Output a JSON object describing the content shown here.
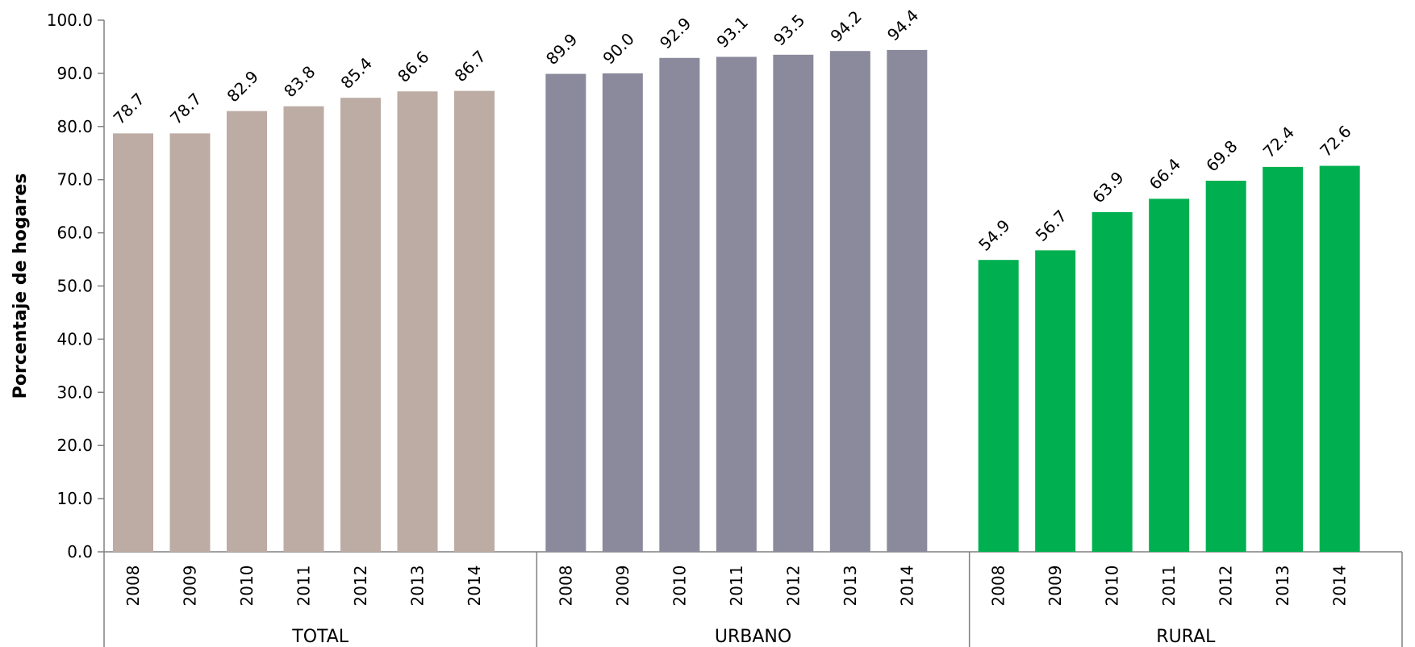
{
  "chart_data": {
    "type": "bar",
    "ylabel": "Porcentaje de hogares",
    "ylim": [
      0,
      100
    ],
    "yticks": [
      "0.0",
      "10.0",
      "20.0",
      "30.0",
      "40.0",
      "50.0",
      "60.0",
      "70.0",
      "80.0",
      "90.0",
      "100.0"
    ],
    "grid": false,
    "groups": [
      {
        "name": "TOTAL",
        "color": "#bcaca4",
        "categories": [
          "2008",
          "2009",
          "2010",
          "2011",
          "2012",
          "2013",
          "2014"
        ],
        "values": [
          78.7,
          78.7,
          82.9,
          83.8,
          85.4,
          86.6,
          86.7
        ],
        "labels": [
          "78.7",
          "78.7",
          "82.9",
          "83.8",
          "85.4",
          "86.6",
          "86.7"
        ]
      },
      {
        "name": "URBANO",
        "color": "#8b8a9c",
        "categories": [
          "2008",
          "2009",
          "2010",
          "2011",
          "2012",
          "2013",
          "2014"
        ],
        "values": [
          89.9,
          90.0,
          92.9,
          93.1,
          93.5,
          94.2,
          94.4
        ],
        "labels": [
          "89.9",
          "90.0",
          "92.9",
          "93.1",
          "93.5",
          "94.2",
          "94.4"
        ]
      },
      {
        "name": "RURAL",
        "color": "#00b050",
        "categories": [
          "2008",
          "2009",
          "2010",
          "2011",
          "2012",
          "2013",
          "2014"
        ],
        "values": [
          54.9,
          56.7,
          63.9,
          66.4,
          69.8,
          72.4,
          72.6
        ],
        "labels": [
          "54.9",
          "56.7",
          "63.9",
          "66.4",
          "69.8",
          "72.4",
          "72.6"
        ]
      }
    ]
  }
}
